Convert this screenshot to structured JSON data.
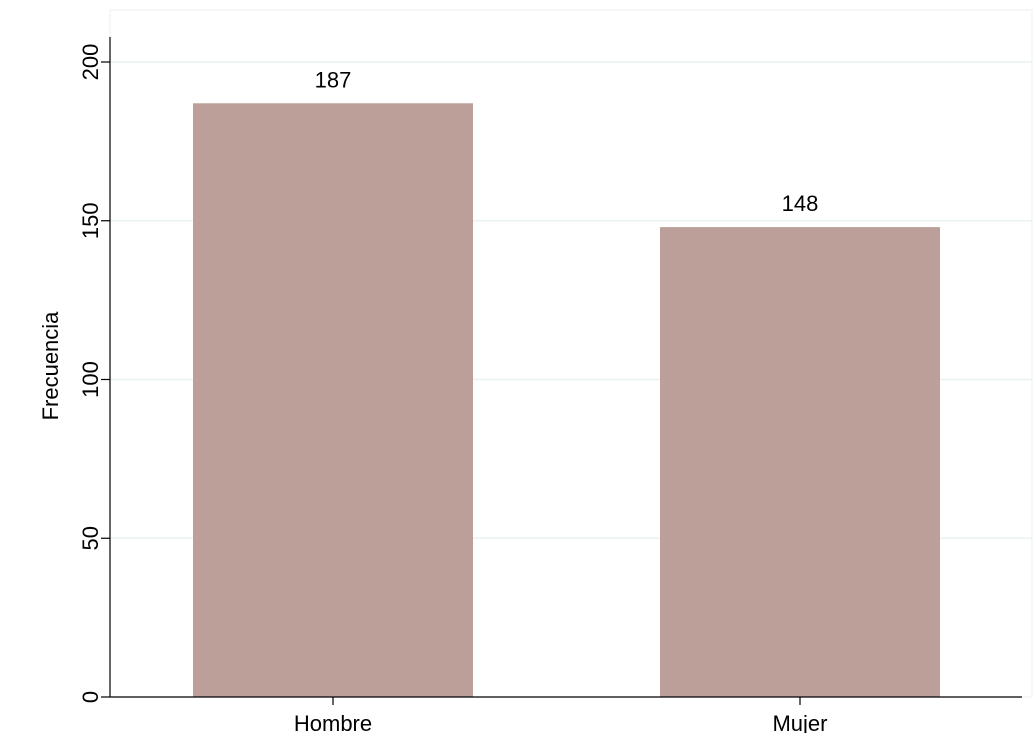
{
  "chart_data": {
    "type": "bar",
    "categories": [
      "Hombre",
      "Mujer"
    ],
    "values": [
      187,
      148
    ],
    "data_labels": [
      "187",
      "148"
    ],
    "title": "",
    "xlabel": "",
    "ylabel": "Frecuencia",
    "ylim": [
      0,
      200
    ],
    "yticks": [
      0,
      50,
      100,
      150,
      200
    ],
    "ytick_labels": [
      "0",
      "50",
      "100",
      "150",
      "200"
    ],
    "grid": true,
    "legend": "none",
    "colors": {
      "bar": "#bc9f98",
      "grid": "#eaf2f3",
      "axis": "#000000",
      "plot_border": "#eaf2f3"
    }
  }
}
